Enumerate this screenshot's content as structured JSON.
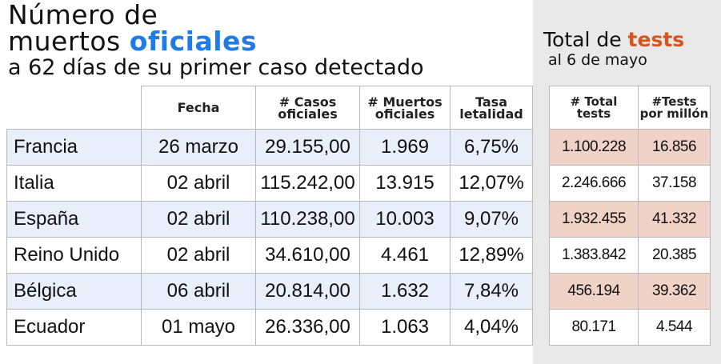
{
  "title": {
    "line1": "Número de",
    "line2_prefix": "muertos ",
    "line2_accent": "oficiales",
    "line3": "a 62 días de su primer caso detectado"
  },
  "side": {
    "title_prefix": "Total de ",
    "title_accent": "tests",
    "subtitle": "al 6 de mayo"
  },
  "colors": {
    "accent_blue": "#1f7be6",
    "accent_orange": "#d8541a",
    "row_shade_blue": "#e8eefa",
    "row_shade_peach": "#f0d3c6",
    "side_panel": "#e9e9e9"
  },
  "main_table": {
    "headers": {
      "fecha": "Fecha",
      "casos_1": "# Casos",
      "casos_2": "oficiales",
      "muertos_1": "# Muertos",
      "muertos_2": "oficiales",
      "tasa_1": "Tasa",
      "tasa_2": "letalidad"
    },
    "rows": [
      {
        "country": "Francia",
        "fecha": "26 marzo",
        "casos": "29.155,00",
        "muertos": "1.969",
        "tasa": "6,75%"
      },
      {
        "country": "Italia",
        "fecha": "02 abril",
        "casos": "115.242,00",
        "muertos": "13.915",
        "tasa": "12,07%"
      },
      {
        "country": "España",
        "fecha": "02 abril",
        "casos": "110.238,00",
        "muertos": "10.003",
        "tasa": "9,07%"
      },
      {
        "country": "Reino Unido",
        "fecha": "02 abril",
        "casos": "34.610,00",
        "muertos": "4.461",
        "tasa": "12,89%"
      },
      {
        "country": "Bélgica",
        "fecha": "06 abril",
        "casos": "20.814,00",
        "muertos": "1.632",
        "tasa": "7,84%"
      },
      {
        "country": "Ecuador",
        "fecha": "01 mayo",
        "casos": "26.336,00",
        "muertos": "1.063",
        "tasa": "4,04%"
      }
    ]
  },
  "tests_table": {
    "headers": {
      "total_1": "# Total",
      "total_2": "tests",
      "permillon_1": "#Tests",
      "permillon_2": "por millón"
    },
    "rows": [
      {
        "total": "1.100.228",
        "permillon": "16.856"
      },
      {
        "total": "2.246.666",
        "permillon": "37.158"
      },
      {
        "total": "1.932.455",
        "permillon": "41.332"
      },
      {
        "total": "1.383.842",
        "permillon": "20.385"
      },
      {
        "total": "456.194",
        "permillon": "39.362"
      },
      {
        "total": "80.171",
        "permillon": "4.544"
      }
    ]
  }
}
